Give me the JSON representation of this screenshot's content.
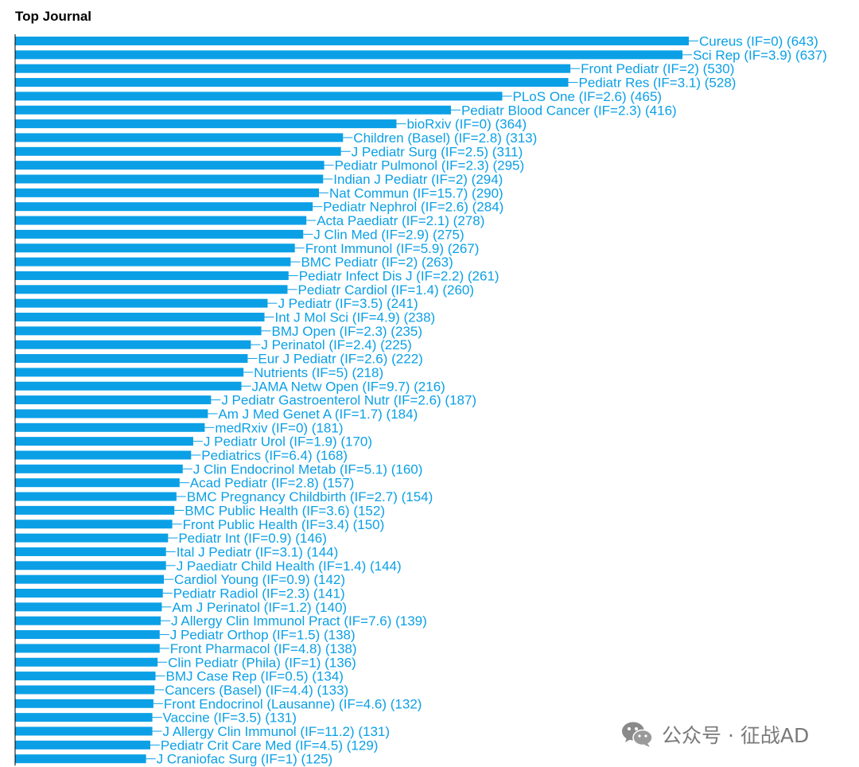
{
  "colors": {
    "bar": "#0BA0E6",
    "label": "#0BA0E6",
    "leader": "#0BA0E6",
    "axis": "#000000",
    "title": "#000000",
    "watermark": "#7a7a7a"
  },
  "watermark": {
    "icon": "wechat-icon",
    "text": "公众号 · 征战AD"
  },
  "chart_data": {
    "type": "bar",
    "orientation": "horizontal",
    "title": "Top Journal",
    "xlabel": "",
    "ylabel": "",
    "grid": false,
    "legend": "none",
    "xlim": [
      0,
      643
    ],
    "categories": [
      "Cureus (IF=0) (643)",
      "Sci Rep (IF=3.9) (637)",
      "Front Pediatr (IF=2) (530)",
      "Pediatr Res (IF=3.1) (528)",
      "PLoS One (IF=2.6) (465)",
      "Pediatr Blood Cancer (IF=2.3) (416)",
      "bioRxiv (IF=0) (364)",
      "Children (Basel) (IF=2.8) (313)",
      "J Pediatr Surg (IF=2.5) (311)",
      "Pediatr Pulmonol (IF=2.3) (295)",
      "Indian J Pediatr (IF=2) (294)",
      "Nat Commun (IF=15.7) (290)",
      "Pediatr Nephrol (IF=2.6) (284)",
      "Acta Paediatr (IF=2.1) (278)",
      "J Clin Med (IF=2.9) (275)",
      "Front Immunol (IF=5.9) (267)",
      "BMC Pediatr (IF=2) (263)",
      "Pediatr Infect Dis J (IF=2.2) (261)",
      "Pediatr Cardiol (IF=1.4) (260)",
      "J Pediatr (IF=3.5) (241)",
      "Int J Mol Sci (IF=4.9) (238)",
      "BMJ Open (IF=2.3) (235)",
      "J Perinatol (IF=2.4) (225)",
      "Eur J Pediatr (IF=2.6) (222)",
      "Nutrients (IF=5) (218)",
      "JAMA Netw Open (IF=9.7) (216)",
      "J Pediatr Gastroenterol Nutr (IF=2.6) (187)",
      "Am J Med Genet A (IF=1.7) (184)",
      "medRxiv (IF=0) (181)",
      "J Pediatr Urol (IF=1.9) (170)",
      "Pediatrics (IF=6.4) (168)",
      "J Clin Endocrinol Metab (IF=5.1) (160)",
      "Acad Pediatr (IF=2.8) (157)",
      "BMC Pregnancy Childbirth (IF=2.7) (154)",
      "BMC Public Health (IF=3.6) (152)",
      "Front Public Health (IF=3.4) (150)",
      "Pediatr Int (IF=0.9) (146)",
      "Ital J Pediatr (IF=3.1) (144)",
      "J Paediatr Child Health (IF=1.4) (144)",
      "Cardiol Young (IF=0.9) (142)",
      "Pediatr Radiol (IF=2.3) (141)",
      "Am J Perinatol (IF=1.2) (140)",
      "J Allergy Clin Immunol Pract (IF=7.6) (139)",
      "J Pediatr Orthop (IF=1.5) (138)",
      "Front Pharmacol (IF=4.8) (138)",
      "Clin Pediatr (Phila) (IF=1) (136)",
      "BMJ Case Rep (IF=0.5) (134)",
      "Cancers (Basel) (IF=4.4) (133)",
      "Front Endocrinol (Lausanne) (IF=4.6) (132)",
      "Vaccine (IF=3.5) (131)",
      "J Allergy Clin Immunol (IF=11.2) (131)",
      "Pediatr Crit Care Med (IF=4.5) (129)",
      "J Craniofac Surg (IF=1) (125)"
    ],
    "values": [
      643,
      637,
      530,
      528,
      465,
      416,
      364,
      313,
      311,
      295,
      294,
      290,
      284,
      278,
      275,
      267,
      263,
      261,
      260,
      241,
      238,
      235,
      225,
      222,
      218,
      216,
      187,
      184,
      181,
      170,
      168,
      160,
      157,
      154,
      152,
      150,
      146,
      144,
      144,
      142,
      141,
      140,
      139,
      138,
      138,
      136,
      134,
      133,
      132,
      131,
      131,
      129,
      125
    ]
  }
}
